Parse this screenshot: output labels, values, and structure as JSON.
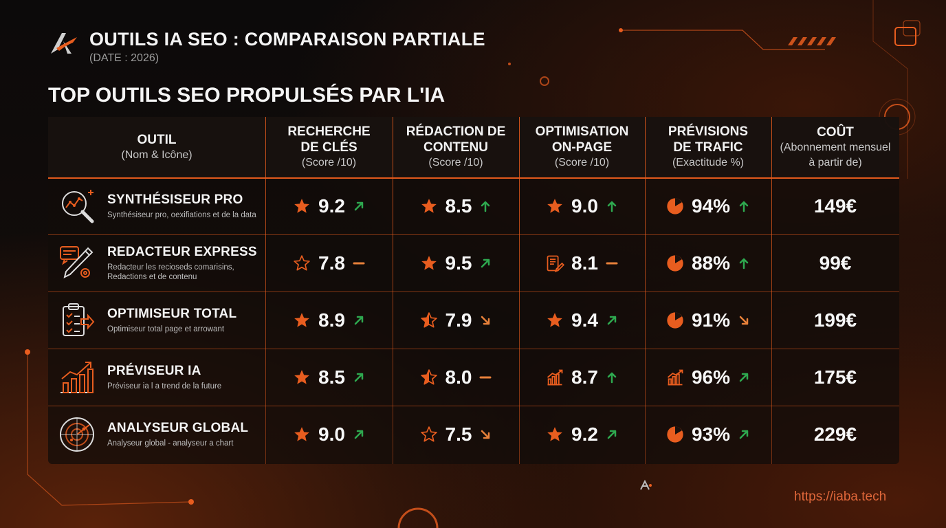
{
  "header": {
    "title": "OUTILS IA SEO : COMPARAISON PARTIALE",
    "date": "(DATE : 2026)",
    "section_title": "TOP OUTILS SEO PROPULSÉS PAR L'IA"
  },
  "columns": [
    {
      "main": "OUTIL",
      "sub": "(Nom & Icône)"
    },
    {
      "main": "RECHERCHE DE CLÉS",
      "sub": "(Score /10)"
    },
    {
      "main": "RÉDACTION DE CONTENU",
      "sub": "(Score /10)"
    },
    {
      "main": "OPTIMISATION ON-PAGE",
      "sub": "(Score /10)"
    },
    {
      "main": "PRÉVISIONS DE TRAFIC",
      "sub": "(Exactitude %)"
    },
    {
      "main": "COÛT",
      "sub": "(Abonnement mensuel à partir de)"
    }
  ],
  "rows": [
    {
      "name": "SYNTHÉSISEUR PRO",
      "desc": "Synthésiseur pro, oexifiations et de la data",
      "icon": "analytics-magnifier-icon",
      "cells": [
        {
          "icon": "star-filled-icon",
          "value": "9.2",
          "trend": "up-right"
        },
        {
          "icon": "star-filled-icon",
          "value": "8.5",
          "trend": "up"
        },
        {
          "icon": "star-filled-icon",
          "value": "9.0",
          "trend": "up"
        },
        {
          "icon": "pie-icon",
          "value": "94%",
          "trend": "up"
        }
      ],
      "cost": "149€"
    },
    {
      "name": "REDACTEUR EXPRESS",
      "desc": "Redacteur les recioseds comarisins, Redactions et de contenu",
      "icon": "pen-gear-icon",
      "cells": [
        {
          "icon": "star-outline-icon",
          "value": "7.8",
          "trend": "flat"
        },
        {
          "icon": "star-filled-icon",
          "value": "9.5",
          "trend": "up-right"
        },
        {
          "icon": "document-edit-icon",
          "value": "8.1",
          "trend": "flat"
        },
        {
          "icon": "pie-icon",
          "value": "88%",
          "trend": "up"
        }
      ],
      "cost": "99€"
    },
    {
      "name": "OPTIMISEUR TOTAL",
      "desc": "Optimiseur total page et arrowant",
      "icon": "clipboard-checklist-icon",
      "cells": [
        {
          "icon": "star-filled-icon",
          "value": "8.9",
          "trend": "up-right"
        },
        {
          "icon": "star-half-icon",
          "value": "7.9",
          "trend": "down-right"
        },
        {
          "icon": "star-filled-icon",
          "value": "9.4",
          "trend": "up-right"
        },
        {
          "icon": "pie-icon",
          "value": "91%",
          "trend": "down-right"
        }
      ],
      "cost": "199€"
    },
    {
      "name": "PRÉVISEUR IA",
      "desc": "Préviseur ia l a trend de la future",
      "icon": "growth-chart-icon",
      "cells": [
        {
          "icon": "star-filled-icon",
          "value": "8.5",
          "trend": "up-right"
        },
        {
          "icon": "star-half-icon",
          "value": "8.0",
          "trend": "flat"
        },
        {
          "icon": "bar-chart-icon",
          "value": "8.7",
          "trend": "up"
        },
        {
          "icon": "bar-chart-icon",
          "value": "96%",
          "trend": "up-right"
        }
      ],
      "cost": "175€"
    },
    {
      "name": "ANALYSEUR GLOBAL",
      "desc": "Analyseur global - analyseur a chart",
      "icon": "radar-icon",
      "cells": [
        {
          "icon": "star-filled-icon",
          "value": "9.0",
          "trend": "up-right"
        },
        {
          "icon": "star-outline-icon",
          "value": "7.5",
          "trend": "down-right"
        },
        {
          "icon": "star-filled-icon",
          "value": "9.2",
          "trend": "up-right"
        },
        {
          "icon": "pie-icon",
          "value": "93%",
          "trend": "up-right"
        }
      ],
      "cost": "229€"
    }
  ],
  "footer": {
    "url": "https://iaba.tech"
  },
  "colors": {
    "accent": "#e85d1f",
    "trend_up": "#2ea84f",
    "trend_down": "#e8813a",
    "trend_flat": "#e8813a"
  }
}
